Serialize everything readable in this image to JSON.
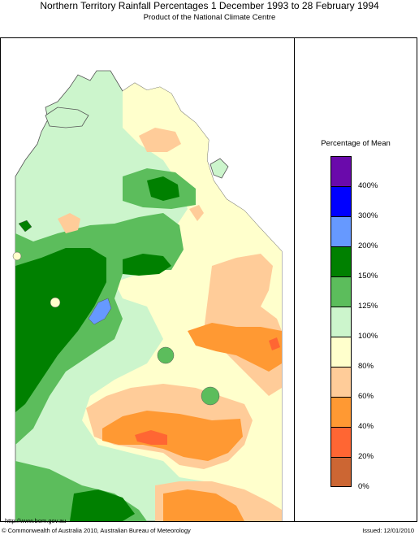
{
  "header": {
    "title": "Northern Territory Rainfall Percentages 1 December 1993 to 28 February 1994",
    "subtitle": "Product of the National Climate Centre"
  },
  "legend": {
    "title": "Percentage of Mean",
    "colors": [
      "#6a0aab",
      "#0000ff",
      "#6699ff",
      "#008000",
      "#5cbd5c",
      "#ccf5cc",
      "#ffffcc",
      "#ffcc99",
      "#ff9933",
      "#ff6633",
      "#cc6633"
    ],
    "ticks": [
      "400%",
      "300%",
      "200%",
      "150%",
      "125%",
      "100%",
      "80%",
      "60%",
      "40%",
      "20%",
      "0%"
    ]
  },
  "map": {
    "region": "Northern Territory",
    "colors": {
      "sea": "#ffffff",
      "outline": "#555555"
    }
  },
  "footer": {
    "url": "http://www.bom.gov.au",
    "copyright": "© Commonwealth of Australia 2010, Australian Bureau of Meteorology",
    "issued": "Issued: 12/01/2010"
  }
}
